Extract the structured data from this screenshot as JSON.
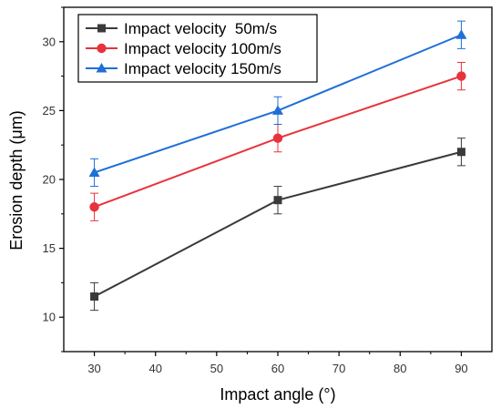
{
  "chart_data": {
    "type": "line",
    "xlabel": "Impact angle (°)",
    "ylabel": "Erosion depth (μm)",
    "xlim": [
      25,
      95
    ],
    "ylim": [
      7.5,
      32.5
    ],
    "x_ticks": [
      "30",
      "40",
      "50",
      "60",
      "70",
      "80",
      "90"
    ],
    "y_ticks": [
      "10",
      "15",
      "20",
      "25",
      "30"
    ],
    "x": [
      30,
      60,
      90
    ],
    "grid": false,
    "legend_position": "top-left",
    "series": [
      {
        "name": "Impact velocity  50m/s",
        "values": [
          11.5,
          18.5,
          22.0
        ],
        "errors": [
          1.0,
          1.0,
          1.0
        ],
        "color": "#3a3a3a",
        "marker": "square"
      },
      {
        "name": "Impact velocity 100m/s",
        "values": [
          18.0,
          23.0,
          27.5
        ],
        "errors": [
          1.0,
          1.0,
          1.0
        ],
        "color": "#e8333c",
        "marker": "circle"
      },
      {
        "name": "Impact velocity 150m/s",
        "values": [
          20.5,
          25.0,
          30.5
        ],
        "errors": [
          1.0,
          1.0,
          1.0
        ],
        "color": "#1f6fd6",
        "marker": "triangle"
      }
    ]
  }
}
